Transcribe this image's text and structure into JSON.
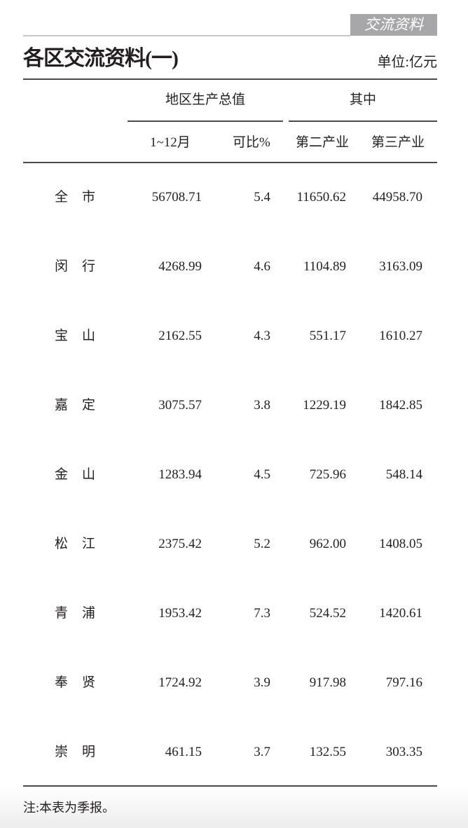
{
  "header": {
    "section_tag": "交流资料",
    "title": "各区交流资料(一)",
    "unit": "单位:亿元"
  },
  "columns": {
    "group1": "地区生产总值",
    "group2": "其中",
    "sub": [
      "1~12月",
      "可比%",
      "第二产业",
      "第三产业"
    ]
  },
  "rows": [
    {
      "name": "全市",
      "gdp": "56708.71",
      "growth": "5.4",
      "secondary": "11650.62",
      "tertiary": "44958.70"
    },
    {
      "name": "闵行",
      "gdp": "4268.99",
      "growth": "4.6",
      "secondary": "1104.89",
      "tertiary": "3163.09"
    },
    {
      "name": "宝山",
      "gdp": "2162.55",
      "growth": "4.3",
      "secondary": "551.17",
      "tertiary": "1610.27"
    },
    {
      "name": "嘉定",
      "gdp": "3075.57",
      "growth": "3.8",
      "secondary": "1229.19",
      "tertiary": "1842.85"
    },
    {
      "name": "金山",
      "gdp": "1283.94",
      "growth": "4.5",
      "secondary": "725.96",
      "tertiary": "548.14"
    },
    {
      "name": "松江",
      "gdp": "2375.42",
      "growth": "5.2",
      "secondary": "962.00",
      "tertiary": "1408.05"
    },
    {
      "name": "青浦",
      "gdp": "1953.42",
      "growth": "7.3",
      "secondary": "524.52",
      "tertiary": "1420.61"
    },
    {
      "name": "奉贤",
      "gdp": "1724.92",
      "growth": "3.9",
      "secondary": "917.98",
      "tertiary": "797.16"
    },
    {
      "name": "崇明",
      "gdp": "461.15",
      "growth": "3.7",
      "secondary": "132.55",
      "tertiary": "303.35"
    }
  ],
  "footer": {
    "note": "注:本表为季报。"
  }
}
